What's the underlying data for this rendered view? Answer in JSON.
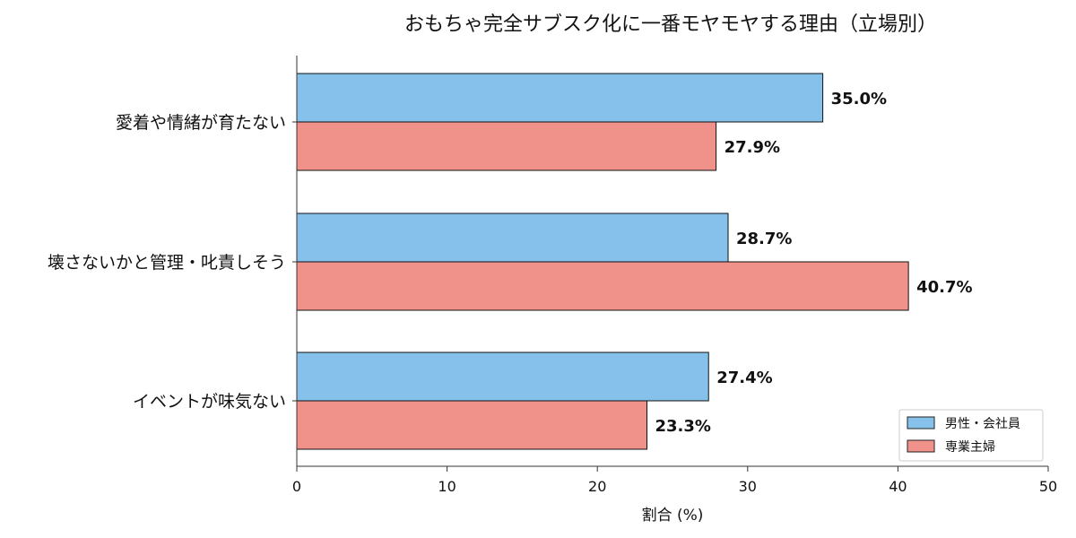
{
  "chart_data": {
    "type": "bar",
    "orientation": "horizontal",
    "title": "おもちゃ完全サブスク化に一番モヤモヤする理由（立場別）",
    "xlabel": "割合 (%)",
    "ylabel": "",
    "xlim": [
      0,
      50
    ],
    "xticks": [
      "0",
      "10",
      "20",
      "30",
      "40",
      "50"
    ],
    "categories": [
      "愛着や情緒が育たない",
      "壊さないかと管理・叱責しそう",
      "イベントが味気ない"
    ],
    "series": [
      {
        "name": "男性・会社員",
        "values": [
          35.0,
          28.7,
          27.4
        ],
        "labels": [
          "35.0%",
          "28.7%",
          "27.4%"
        ],
        "color": "#85c1ea"
      },
      {
        "name": "専業主婦",
        "values": [
          27.9,
          40.7,
          23.3
        ],
        "labels": [
          "27.9%",
          "40.7%",
          "23.3%"
        ],
        "color": "#f0918a"
      }
    ],
    "grid": false,
    "legend_position": "lower-right"
  }
}
